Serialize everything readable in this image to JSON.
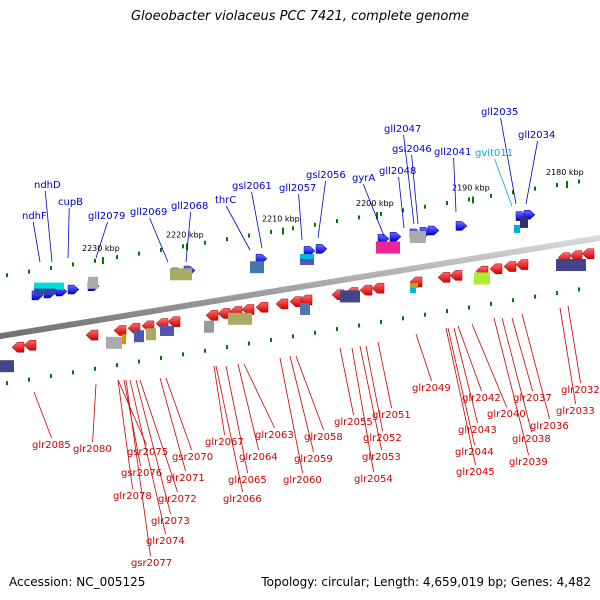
{
  "title": "Gloeobacter violaceus PCC 7421, complete genome",
  "accession_label": "Accession: NC_005125",
  "stats_label": "Topology: circular; Length: 4,659,019 bp; Genes: 4,482",
  "colors": {
    "forward_label": "#0000cc",
    "reverse_label": "#cc0000",
    "highlight_label": "#00aadd",
    "forward_gene": "#0000ee",
    "reverse_gene": "#ee0000",
    "tick": "#007700",
    "backbone": "#888888"
  },
  "position_labels": [
    "2230 kbp",
    "2220 kbp",
    "2210 kbp",
    "2200 kbp",
    "2190 kbp",
    "2180 kbp"
  ],
  "forward_labels": [
    "ndhF",
    "ndhD",
    "cupB",
    "gll2079",
    "gll2069",
    "gll2068",
    "thrC",
    "gsl2061",
    "gll2057",
    "gsl2056",
    "gyrA",
    "gll2048",
    "gsl2046",
    "gll2047",
    "gll2041",
    "gvit011",
    "gll2035",
    "gll2034"
  ],
  "reverse_labels": [
    "glr2085",
    "glr2080",
    "gsr2075",
    "gsr2076",
    "glr2078",
    "glr2071",
    "gsr2070",
    "glr2072",
    "glr2073",
    "glr2074",
    "gsr2077",
    "glr2067",
    "glr2066",
    "glr2065",
    "glr2064",
    "glr2063",
    "glr2060",
    "glr2059",
    "glr2058",
    "glr2055",
    "glr2054",
    "glr2053",
    "glr2052",
    "glr2051",
    "glr2049",
    "glr2045",
    "glr2044",
    "glr2043",
    "glr2042",
    "glr2040",
    "glr2039",
    "glr2038",
    "glr2037",
    "glr2036",
    "glr2033",
    "glr2032"
  ]
}
